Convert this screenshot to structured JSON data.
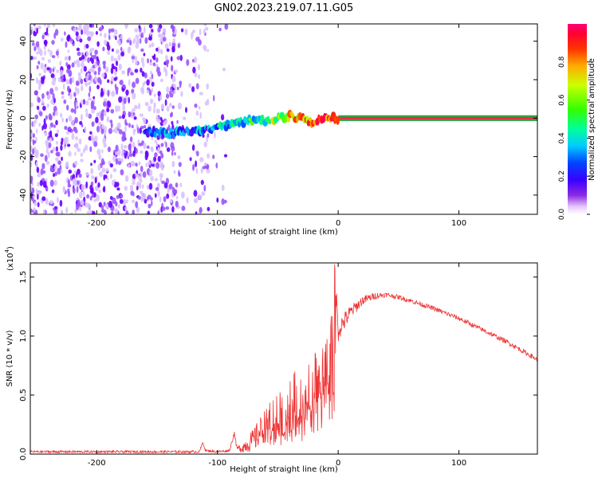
{
  "title": "GN02.2023.219.07.11.G05",
  "colors": {
    "signal": "#ee3333",
    "background": "#ffffff",
    "axis": "#000000"
  },
  "chart_data": [
    {
      "type": "heatmap",
      "name": "spectrogram",
      "xlabel": "Height of straight line (km)",
      "ylabel": "Frequency (Hz)",
      "xlim": [
        -255,
        165
      ],
      "ylim": [
        -50,
        49
      ],
      "xticks": [
        -200,
        -100,
        0,
        100
      ],
      "xtick_labels": [
        "-200",
        "-100",
        "0",
        "100"
      ],
      "yticks": [
        -40,
        -20,
        0,
        20,
        40
      ],
      "ytick_labels": [
        "-40",
        "-20",
        "0",
        "20",
        "40"
      ],
      "colorbar": {
        "label": "Normalized spectral amplitude",
        "range": [
          0,
          1
        ],
        "ticks": [
          0,
          0.2,
          0.4,
          0.6,
          0.8
        ],
        "tick_labels": [
          "0.0",
          "0.2",
          "0.4",
          "0.6",
          "0.8"
        ]
      },
      "noise_region_km": [
        -255,
        -92
      ],
      "signal_line": {
        "x_km": [
          -160,
          -140,
          -130,
          -110,
          -100,
          -90,
          -80,
          -70,
          -60,
          -50,
          -40,
          -30,
          -20,
          -10,
          0,
          165
        ],
        "freq_hz": [
          -7,
          -8,
          -7,
          -6,
          -5,
          -4,
          -2,
          -1,
          -1,
          0,
          1,
          0,
          -2,
          0,
          0,
          0
        ],
        "amplitude": [
          0.25,
          0.3,
          0.25,
          0.3,
          0.35,
          0.4,
          0.45,
          0.5,
          0.55,
          0.65,
          0.75,
          0.8,
          0.85,
          0.9,
          0.95,
          0.95
        ]
      }
    },
    {
      "type": "line",
      "name": "snr",
      "xlabel": "Height of straight line (km)",
      "ylabel": "SNR (10 * v/v)",
      "y_scale_label": "(x10",
      "y_scale_exp": "4",
      "y_scale_suffix": ")",
      "xlim": [
        -255,
        165
      ],
      "ylim": [
        0,
        1.62
      ],
      "xticks": [
        -200,
        -100,
        0,
        100
      ],
      "xtick_labels": [
        "-200",
        "-100",
        "0",
        "100"
      ],
      "yticks": [
        0,
        0.5,
        1.0,
        1.5
      ],
      "ytick_labels": [
        "0.0",
        "0.5",
        "1.0",
        "1.5"
      ],
      "series": [
        {
          "name": "SNR",
          "x": [
            -255,
            -200,
            -150,
            -115,
            -112,
            -110,
            -100,
            -90,
            -86,
            -84,
            -80,
            -70,
            -60,
            -50,
            -40,
            -30,
            -20,
            -10,
            -5,
            -3,
            0,
            10,
            20,
            30,
            40,
            50,
            60,
            80,
            100,
            120,
            140,
            165
          ],
          "y": [
            0.02,
            0.02,
            0.02,
            0.02,
            0.1,
            0.03,
            0.02,
            0.03,
            0.18,
            0.05,
            0.05,
            0.12,
            0.25,
            0.35,
            0.42,
            0.5,
            0.6,
            0.8,
            0.95,
            1.6,
            1.05,
            1.2,
            1.3,
            1.34,
            1.35,
            1.33,
            1.3,
            1.23,
            1.15,
            1.05,
            0.95,
            0.8
          ],
          "noise": [
            0.01,
            0.01,
            0.01,
            0.01,
            0.01,
            0.01,
            0.01,
            0.01,
            0.02,
            0.02,
            0.04,
            0.1,
            0.15,
            0.2,
            0.25,
            0.25,
            0.25,
            0.25,
            0.25,
            0.1,
            0.1,
            0.06,
            0.04,
            0.03,
            0.02,
            0.02,
            0.02,
            0.02,
            0.02,
            0.02,
            0.02,
            0.02
          ]
        }
      ]
    }
  ]
}
